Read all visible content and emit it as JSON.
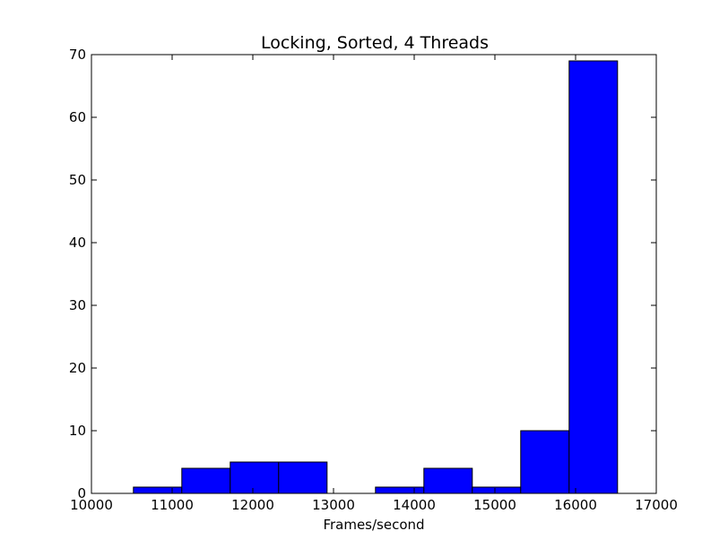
{
  "chart_data": {
    "type": "bar",
    "title": "Locking, Sorted, 4 Threads",
    "xlabel": "Frames/second",
    "ylabel": "",
    "xlim": [
      10000,
      17000
    ],
    "ylim": [
      0,
      70
    ],
    "xticks": [
      "10000",
      "11000",
      "12000",
      "13000",
      "14000",
      "15000",
      "16000",
      "17000"
    ],
    "yticks": [
      "0",
      "10",
      "20",
      "30",
      "40",
      "50",
      "60",
      "70"
    ],
    "bin_edges": [
      10520,
      11120,
      11720,
      12320,
      12920,
      13520,
      14120,
      14720,
      15320,
      15920,
      16520
    ],
    "values": [
      1,
      4,
      5,
      5,
      0,
      1,
      4,
      1,
      10,
      69
    ],
    "bar_color": "#0000ff",
    "edge_color": "#000000",
    "grid": false
  }
}
